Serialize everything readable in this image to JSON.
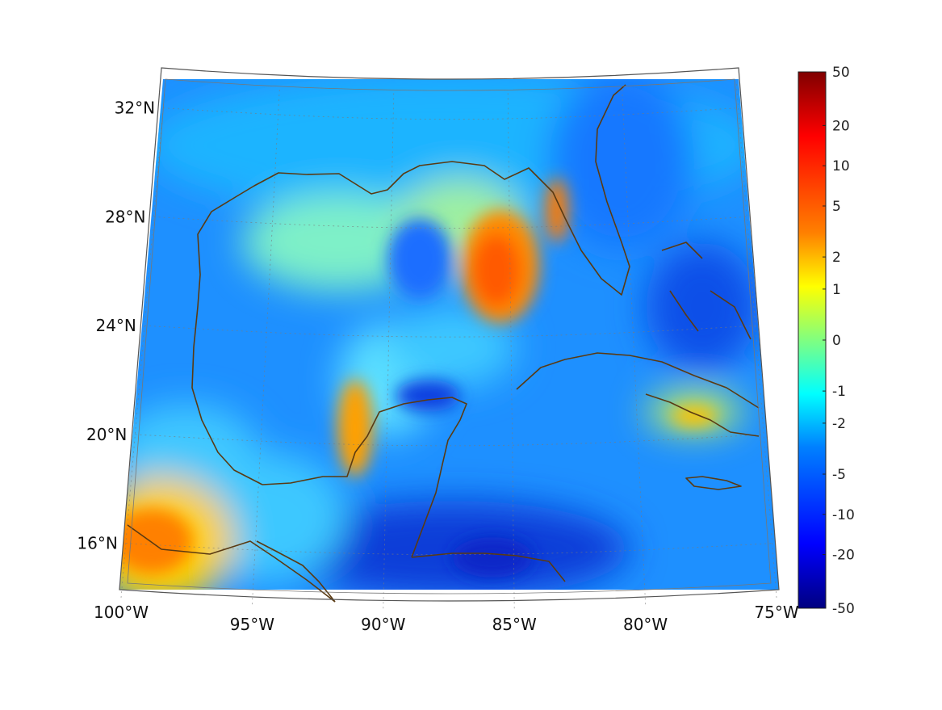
{
  "map": {
    "projection": "conic",
    "lon_range": [
      -100,
      -75
    ],
    "lat_range": [
      14,
      33
    ],
    "lon_ticks": [
      {
        "value": -100,
        "label": "100°W"
      },
      {
        "value": -95,
        "label": "95°W"
      },
      {
        "value": -90,
        "label": "90°W"
      },
      {
        "value": -85,
        "label": "85°W"
      },
      {
        "value": -80,
        "label": "80°W"
      },
      {
        "value": -75,
        "label": "75°W"
      }
    ],
    "lat_ticks": [
      {
        "value": 32,
        "label": "32°N"
      },
      {
        "value": 28,
        "label": "28°N"
      },
      {
        "value": 24,
        "label": "24°N"
      },
      {
        "value": 20,
        "label": "20°N"
      },
      {
        "value": 16,
        "label": "16°N"
      }
    ],
    "grid": "dotted",
    "coastline_color": "#5a3a12",
    "frame_color": "#555555"
  },
  "colorbar": {
    "colormap": "jet",
    "placement": "right",
    "tick_labels": [
      "50",
      "20",
      "10",
      "5",
      "2",
      "1",
      "0",
      "-1",
      "-2",
      "-5",
      "-10",
      "-20",
      "-50"
    ]
  },
  "field_highlights": [
    {
      "region": "eastern Gulf (~86°W, 26°N)",
      "level": "5"
    },
    {
      "region": "Tampa Bay area (~83°W, 28°N)",
      "level": "5"
    },
    {
      "region": "Campeche / Yucatán coast (~91°W, 20°N)",
      "level": "2"
    },
    {
      "region": "southern Mexico / Pacific (~98°W, 16°N)",
      "level": "5"
    },
    {
      "region": "eastern Cuba (~77°W, 20.5°N)",
      "level": "2"
    },
    {
      "region": "Gulf of Honduras (~86°W, 16°N)",
      "level": "-10"
    }
  ]
}
